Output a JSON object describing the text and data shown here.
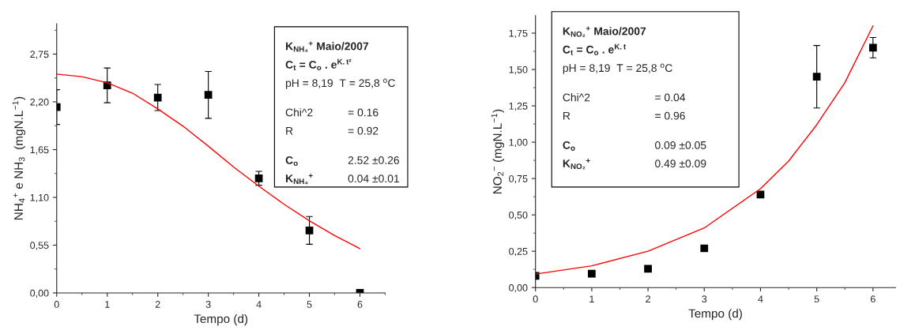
{
  "chart_data": [
    {
      "type": "scatter",
      "xlabel": "Tempo (d)",
      "ylabel": "NH$_{4}$$^{+}$ e NH$_{3}$  (mgN.L$^{−1}$)",
      "xlim": [
        0,
        6.5
      ],
      "ylim": [
        0,
        3.1
      ],
      "xticks": [
        0,
        1,
        2,
        3,
        4,
        5,
        6
      ],
      "yticks": [
        {
          "value": 0,
          "label": "0,00"
        },
        {
          "value": 0.55,
          "label": "0,55"
        },
        {
          "value": 1.1,
          "label": "1,10"
        },
        {
          "value": 1.65,
          "label": "1,65"
        },
        {
          "value": 2.2,
          "label": "2,20"
        },
        {
          "value": 2.75,
          "label": "2,75"
        }
      ],
      "grid": false,
      "legend": false,
      "series": [
        {
          "marker": "square",
          "color": "#000000",
          "x": [
            0,
            1,
            2,
            3,
            4,
            5,
            6
          ],
          "values": [
            2.14,
            2.39,
            2.25,
            2.28,
            1.32,
            0.72,
            0
          ],
          "errors": [
            0.2,
            0.2,
            0.15,
            0.27,
            0.08,
            0.16,
            null
          ]
        },
        {
          "type": "line",
          "color": "#ff0000",
          "x": [
            0,
            0.5,
            1,
            1.5,
            2,
            2.5,
            3,
            3.5,
            4,
            4.5,
            5,
            5.5,
            6
          ],
          "values": [
            2.52,
            2.49,
            2.42,
            2.3,
            2.12,
            1.92,
            1.69,
            1.45,
            1.23,
            1.02,
            0.83,
            0.66,
            0.51
          ]
        }
      ],
      "annotations": [
        "K$_{NH₄}$$^{+}$ Maio/2007",
        "C$_{t}$ = C$_{o}$ . e$^{K.t²}$",
        "pH = 8,19  T = 25,8 $^{o}$C",
        "Chi^2",
        "= 0.16",
        "R",
        "= 0.92",
        "C$_{o}$",
        "2.52 ±0.26",
        "K$_{NH₄}$$^{+}$",
        "0.04 ±0.01"
      ]
    },
    {
      "type": "scatter",
      "xlabel": "Tempo (d)",
      "ylabel": "NO$_{2}$$^{−}$ (mgN.L$^{−1}$)",
      "xlim": [
        0,
        6.4
      ],
      "ylim": [
        0,
        1.87
      ],
      "xticks": [
        0,
        1,
        2,
        3,
        4,
        5,
        6
      ],
      "yticks": [
        {
          "value": 0,
          "label": "0,00"
        },
        {
          "value": 0.25,
          "label": "0,25"
        },
        {
          "value": 0.5,
          "label": "0,50"
        },
        {
          "value": 0.75,
          "label": "0,75"
        },
        {
          "value": 1.0,
          "label": "1,00"
        },
        {
          "value": 1.25,
          "label": "1,25"
        },
        {
          "value": 1.5,
          "label": "1,50"
        },
        {
          "value": 1.75,
          "label": "1,75"
        }
      ],
      "grid": false,
      "legend": false,
      "series": [
        {
          "marker": "square",
          "color": "#000000",
          "x": [
            0,
            1,
            2,
            3,
            4,
            5,
            6
          ],
          "values": [
            0.08,
            0.095,
            0.13,
            0.27,
            0.64,
            1.45,
            1.65
          ],
          "errors": [
            null,
            null,
            null,
            null,
            null,
            0.215,
            0.07
          ]
        },
        {
          "type": "line",
          "color": "#ff0000",
          "x": [
            0,
            1,
            2,
            3,
            4,
            4.5,
            5,
            5.5,
            6
          ],
          "values": [
            0.093,
            0.15,
            0.25,
            0.41,
            0.68,
            0.87,
            1.12,
            1.41,
            1.8
          ]
        }
      ],
      "annotations": [
        "K$_{NO₂}$$^{+}$ Maio/2007",
        "C$_{t}$ = C$_{o}$ . e$^{K.t}$",
        "pH = 8,19  T = 25,8 $^{o}$C",
        "Chi^2",
        "= 0.04",
        "R",
        "= 0.96",
        "C$_{o}$",
        "0.09 ±0.05",
        "K$_{NO₂}$$^{+}$",
        "0.49 ±0.09"
      ]
    }
  ]
}
